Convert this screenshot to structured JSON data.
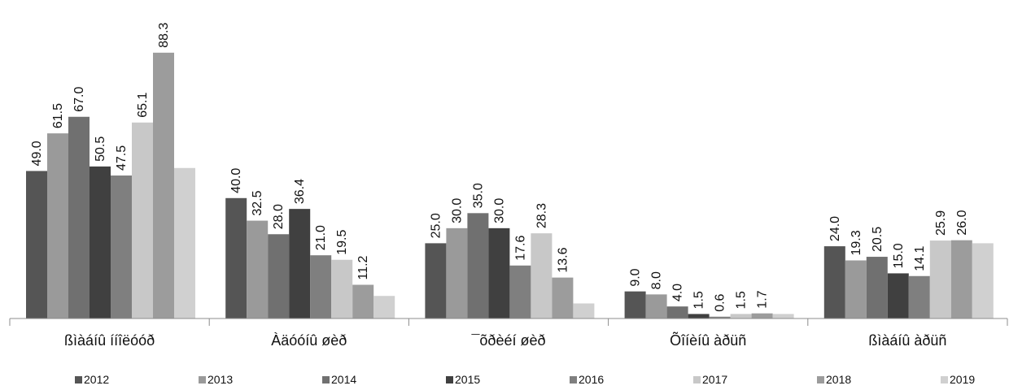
{
  "chart_data": {
    "type": "bar",
    "categories": [
      "ßìàáíû ííîëóóð",
      "Àäóóíû øèð",
      "¯õðèéí øèð",
      "Õîíèíû àðüñ",
      "ßìàáíû àðüñ"
    ],
    "series": [
      {
        "name": "2012",
        "color": "#555555",
        "values": [
          49.0,
          40.0,
          25.0,
          9.0,
          24.0
        ]
      },
      {
        "name": "2013",
        "color": "#9a9a9a",
        "values": [
          61.5,
          32.5,
          30.0,
          8.0,
          19.3
        ]
      },
      {
        "name": "2014",
        "color": "#707070",
        "values": [
          67.0,
          28.0,
          35.0,
          4.0,
          20.5
        ]
      },
      {
        "name": "2015",
        "color": "#404040",
        "values": [
          50.5,
          36.4,
          30.0,
          1.5,
          15.0
        ]
      },
      {
        "name": "2016",
        "color": "#7f7f7f",
        "values": [
          47.5,
          21.0,
          17.6,
          0.6,
          14.1
        ]
      },
      {
        "name": "2017",
        "color": "#c8c8c8",
        "values": [
          65.1,
          19.5,
          28.3,
          1.5,
          25.9
        ]
      },
      {
        "name": "2018",
        "color": "#9c9c9c",
        "values": [
          88.3,
          11.2,
          13.6,
          1.7,
          26.0
        ]
      },
      {
        "name": "2019",
        "color": "#d0d0d0",
        "values": [
          50.0,
          7.5,
          5.0,
          1.5,
          25.0
        ]
      }
    ],
    "data_labels": [
      [
        "49.0",
        "40.0",
        "25.0",
        "9.0",
        "24.0"
      ],
      [
        "61.5",
        "32.5",
        "30.0",
        "8.0",
        "19.3"
      ],
      [
        "67.0",
        "28.0",
        "35.0",
        "4.0",
        "20.5"
      ],
      [
        "50.5",
        "36.4",
        "30.0",
        "1.5",
        "15.0"
      ],
      [
        "47.5",
        "21.0",
        "17.6",
        "0.6",
        "14.1"
      ],
      [
        "65.1",
        "19.5",
        "28.3",
        "1.5",
        "25.9"
      ],
      [
        "88.3",
        "11.2",
        "13.6",
        "1.7",
        "26.0"
      ],
      [
        "",
        "",
        "",
        "",
        ""
      ]
    ],
    "ylim": [
      0,
      95
    ],
    "grid": false,
    "legend_position": "bottom"
  }
}
